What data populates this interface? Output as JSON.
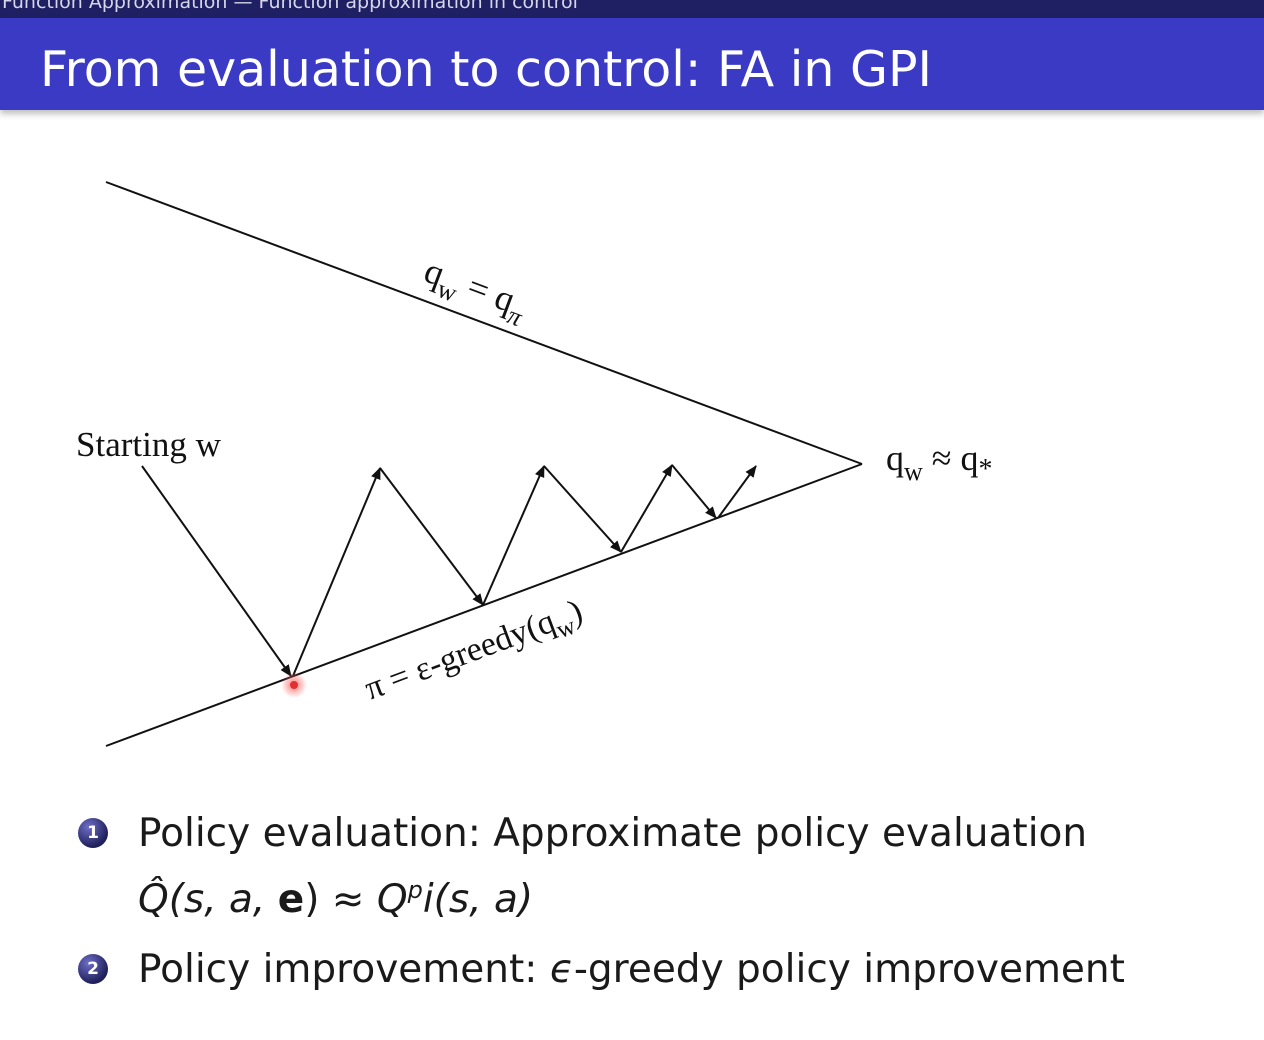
{
  "header": {
    "breadcrumb": "Function Approximation — Function approximation in control",
    "title": "From evaluation to control: FA in GPI"
  },
  "diagram": {
    "top_line_label": {
      "main": "q",
      "sub": "w",
      "eq": " = ",
      "main2": "q",
      "sub2": "π"
    },
    "bottom_line_label": {
      "prefix": "π = ε-greedy(q",
      "sub": "w",
      "suffix": ")"
    },
    "start_label": "Starting w",
    "end_label": {
      "main": "q",
      "sub": "w",
      "approx": " ≈ q",
      "sub2": "*"
    }
  },
  "bullets": [
    {
      "number": "1",
      "text": "Policy evaluation: Approximate policy evaluation",
      "formula": {
        "qhat": "Q̂",
        "args": "(s, a, ",
        "e": "e",
        "close": ")",
        "approx": " ≈ ",
        "q": "Q",
        "sup": "p",
        "tail": "i(s, a)"
      }
    },
    {
      "number": "2",
      "prefix": "Policy improvement: ",
      "epsilon": "ϵ",
      "suffix": "-greedy policy improvement"
    }
  ],
  "colors": {
    "header_dark": "#1f1f63",
    "title_bar": "#3a3ac4",
    "pointer": "#e03030"
  }
}
